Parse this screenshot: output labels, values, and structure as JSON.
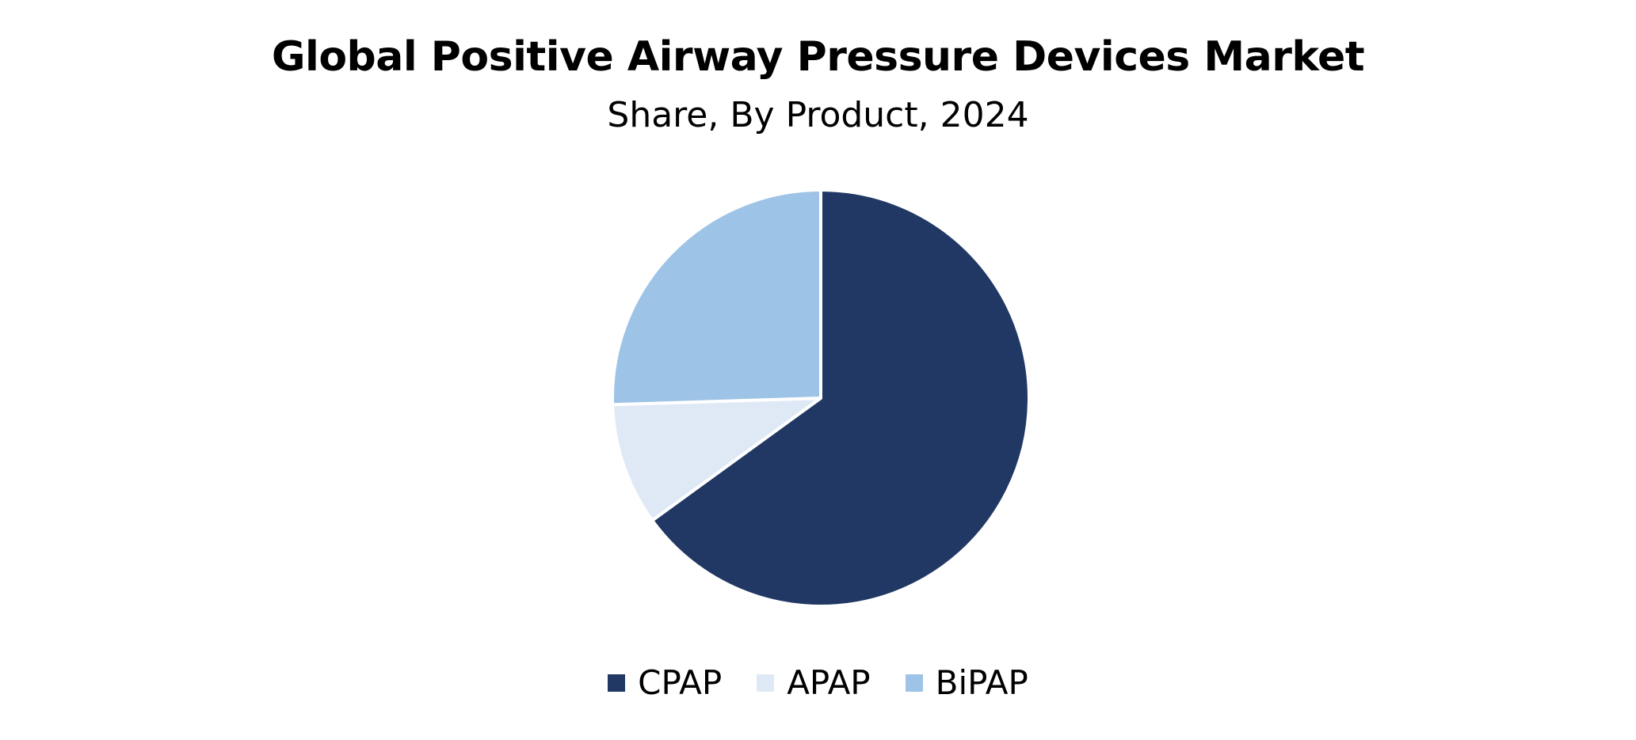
{
  "chart_data": {
    "type": "pie",
    "title": "Global Positive Airway Pressure Devices Market",
    "subtitle": "Share, By Product, 2024",
    "slices": [
      {
        "label": "CPAP",
        "value": 65,
        "color": "#213864"
      },
      {
        "label": "APAP",
        "value": 9.5,
        "color": "#dfe9f6"
      },
      {
        "label": "BiPAP",
        "value": 25.5,
        "color": "#9dc3e6"
      }
    ],
    "legend_position": "bottom"
  }
}
